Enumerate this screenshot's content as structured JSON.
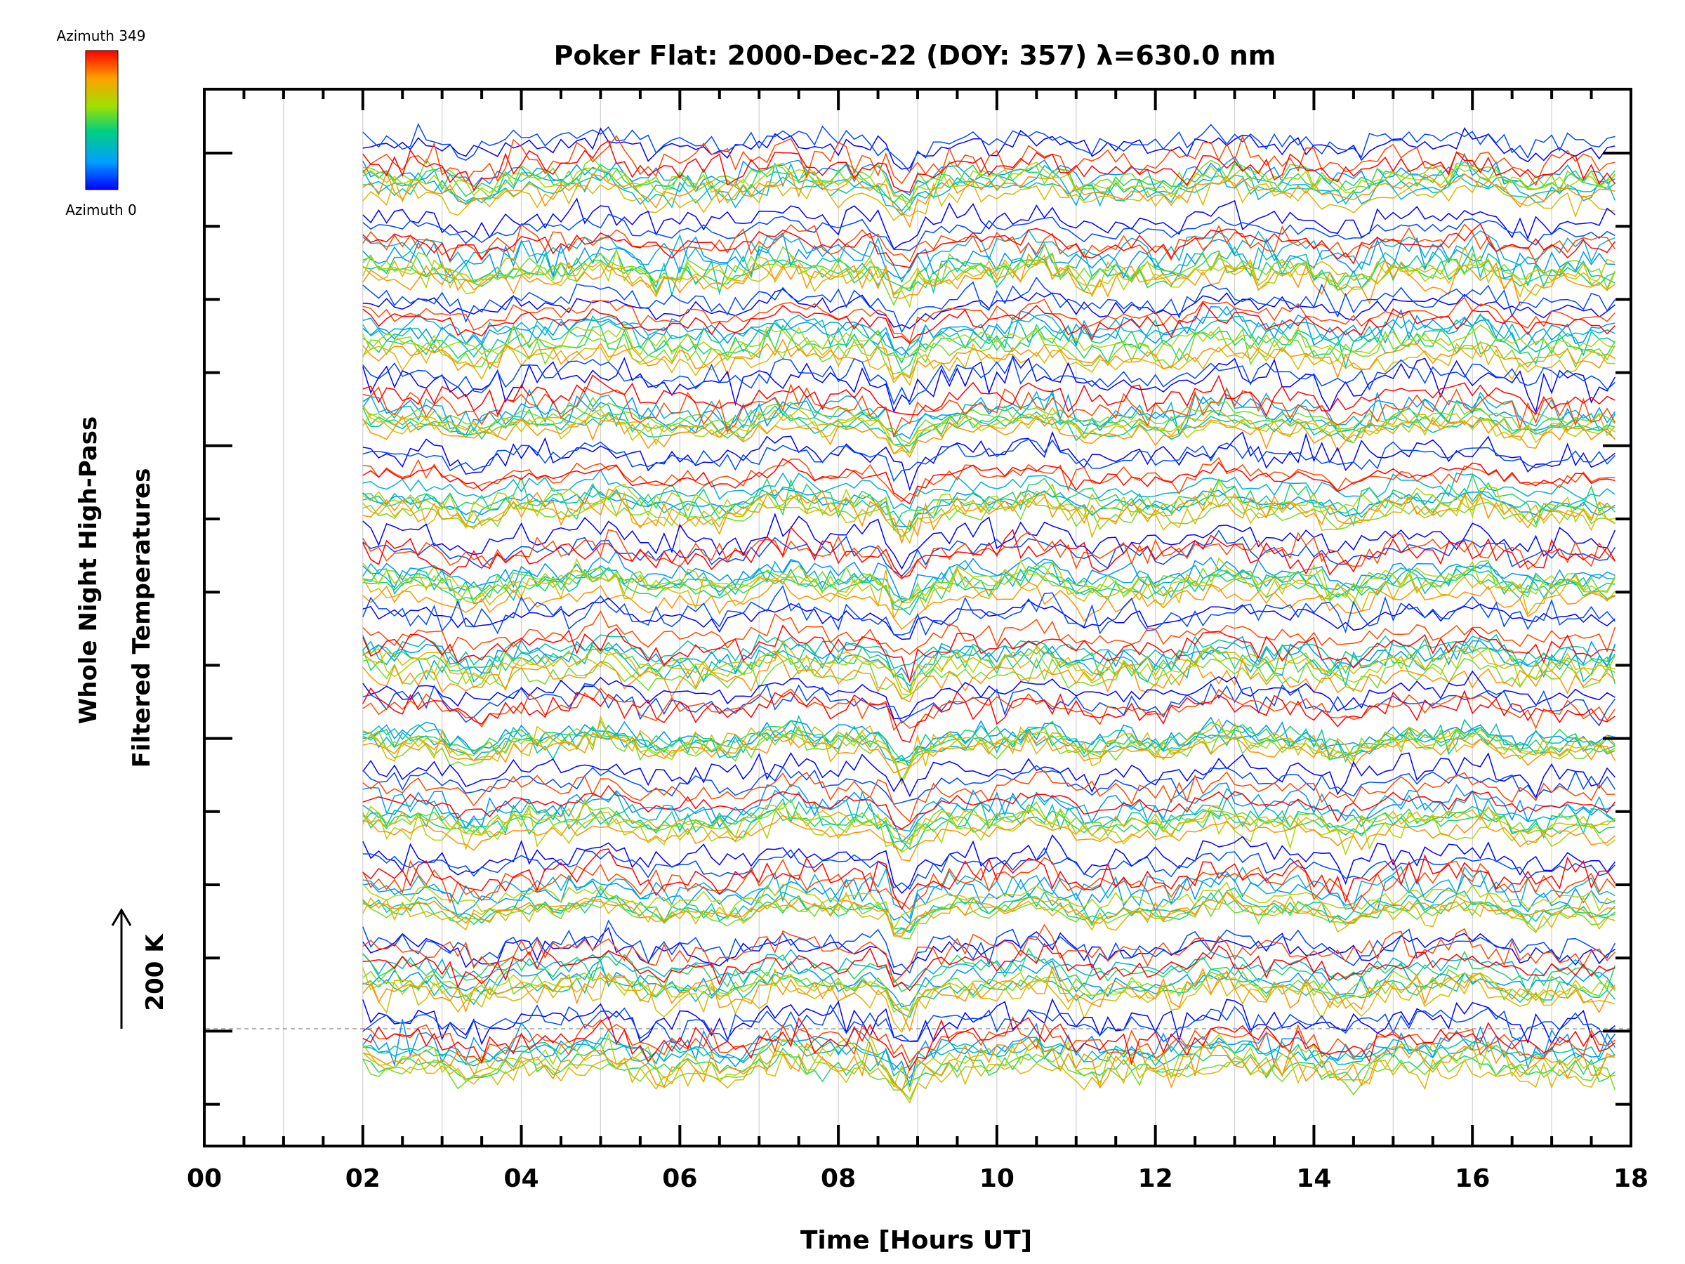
{
  "chart_data": {
    "type": "line",
    "title": "Poker Flat: 2000-Dec-22 (DOY: 357) λ=630.0 nm",
    "xlabel": "Time [Hours UT]",
    "ylabel_line1": "Whole Night High-Pass",
    "ylabel_line2": "Filtered Temperatures",
    "scale_label": "200 K",
    "xlim": [
      0,
      18
    ],
    "x_ticks": [
      "00",
      "02",
      "04",
      "06",
      "08",
      "10",
      "12",
      "14",
      "16",
      "18"
    ],
    "x_data_range": [
      2.0,
      17.8
    ],
    "x_grid": true,
    "baseline_dashed": true,
    "colorbar": {
      "top_label": "Azimuth 349",
      "bottom_label": "Azimuth 0",
      "min_azimuth": 0,
      "max_azimuth": 349,
      "colors": [
        "#0000ff",
        "#00a0ff",
        "#00d080",
        "#a0e000",
        "#ffa000",
        "#ff0000"
      ]
    },
    "band_count": 12,
    "traces_per_band": 12
  }
}
